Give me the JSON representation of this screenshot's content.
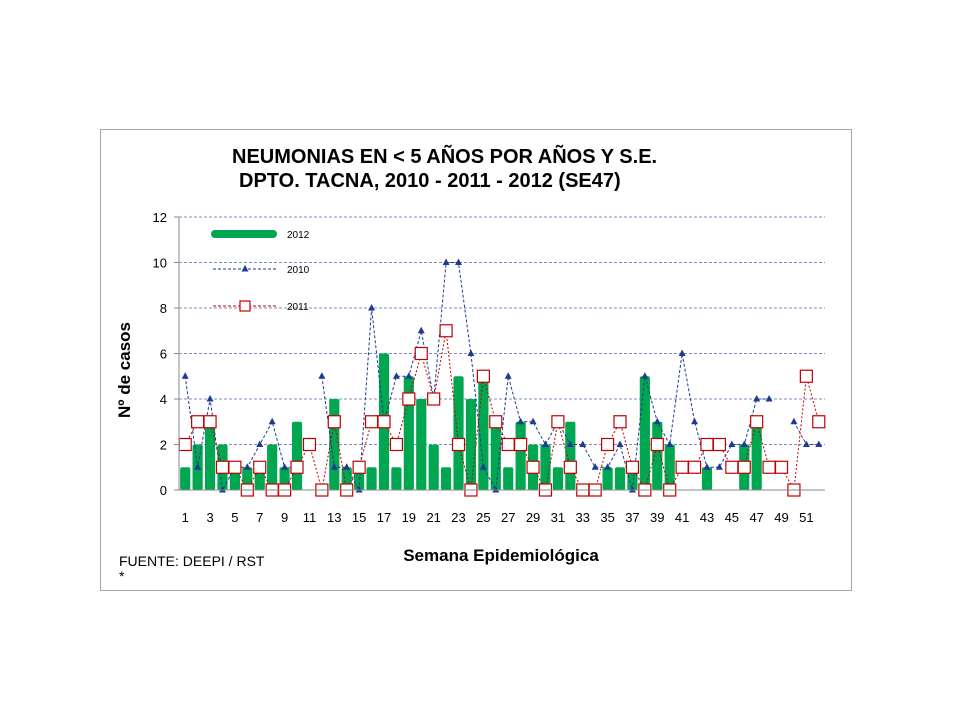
{
  "chart_data": {
    "type": "bar",
    "title_line1": "NEUMONIAS  EN  < 5  AÑOS  POR AÑOS Y S.E.",
    "title_line2": "DPTO. TACNA, 2010 - 2011 - 2012 (SE47)",
    "xlabel": "Semana Epidemiológica",
    "ylabel": "Nº de casos",
    "ylim": [
      0,
      12
    ],
    "yticks": [
      0,
      2,
      4,
      6,
      8,
      10,
      12
    ],
    "grid": true,
    "legend_position": "top-left",
    "source": "FUENTE: DEEPI / RST",
    "footnote": "*",
    "x": [
      1,
      2,
      3,
      4,
      5,
      6,
      7,
      8,
      9,
      10,
      11,
      12,
      13,
      14,
      15,
      16,
      17,
      18,
      19,
      20,
      21,
      22,
      23,
      24,
      25,
      26,
      27,
      28,
      29,
      30,
      31,
      32,
      33,
      34,
      35,
      36,
      37,
      38,
      39,
      40,
      41,
      42,
      43,
      44,
      45,
      46,
      47,
      48,
      49,
      50,
      51,
      52
    ],
    "xtick_labels": [
      "1",
      "3",
      "5",
      "7",
      "9",
      "11",
      "13",
      "15",
      "17",
      "19",
      "21",
      "23",
      "25",
      "27",
      "29",
      "31",
      "33",
      "35",
      "37",
      "39",
      "41",
      "43",
      "45",
      "47",
      "49",
      "51"
    ],
    "series": [
      {
        "name": "2012",
        "type": "bar",
        "color": "#00a650",
        "values": [
          1,
          2,
          3,
          2,
          1,
          1,
          1,
          2,
          1,
          3,
          null,
          null,
          4,
          1,
          1,
          1,
          6,
          1,
          5,
          4,
          2,
          1,
          5,
          4,
          5,
          3,
          1,
          3,
          2,
          2,
          1,
          3,
          null,
          null,
          1,
          1,
          1,
          5,
          3,
          2,
          null,
          null,
          1,
          null,
          null,
          2,
          3,
          null,
          null,
          null,
          null,
          null
        ]
      },
      {
        "name": "2010",
        "type": "line",
        "color": "#1f3a93",
        "marker": "triangle",
        "values": [
          5,
          1,
          4,
          0,
          1,
          1,
          2,
          3,
          1,
          1,
          null,
          5,
          1,
          1,
          0,
          8,
          3,
          5,
          5,
          7,
          4,
          10,
          10,
          6,
          1,
          0,
          5,
          3,
          3,
          2,
          3,
          2,
          2,
          1,
          1,
          2,
          0,
          5,
          3,
          2,
          6,
          3,
          1,
          1,
          2,
          2,
          4,
          4,
          null,
          3,
          2,
          2
        ]
      },
      {
        "name": "2011",
        "type": "line",
        "color": "#c00000",
        "marker": "square",
        "values": [
          2,
          3,
          3,
          1,
          1,
          0,
          1,
          0,
          0,
          1,
          2,
          0,
          3,
          0,
          1,
          3,
          3,
          2,
          4,
          6,
          4,
          7,
          2,
          0,
          5,
          3,
          2,
          2,
          1,
          0,
          3,
          1,
          0,
          0,
          2,
          3,
          1,
          0,
          2,
          0,
          1,
          1,
          2,
          2,
          1,
          1,
          3,
          1,
          1,
          0,
          5,
          3
        ]
      }
    ]
  }
}
